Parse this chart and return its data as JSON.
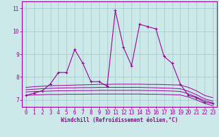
{
  "xlabel": "Windchill (Refroidissement éolien,°C)",
  "x": [
    0,
    1,
    2,
    3,
    4,
    5,
    6,
    7,
    8,
    9,
    10,
    11,
    12,
    13,
    14,
    15,
    16,
    17,
    18,
    19,
    20,
    21,
    22,
    23
  ],
  "main_line": [
    7.2,
    7.3,
    7.4,
    7.7,
    8.2,
    8.2,
    9.2,
    8.6,
    7.8,
    7.8,
    7.6,
    10.9,
    9.3,
    8.5,
    10.3,
    10.2,
    10.1,
    8.9,
    8.6,
    7.7,
    7.2,
    7.1,
    6.9,
    6.85
  ],
  "flat_lines": [
    [
      7.55,
      7.58,
      7.6,
      7.62,
      7.63,
      7.64,
      7.65,
      7.66,
      7.67,
      7.68,
      7.68,
      7.69,
      7.69,
      7.69,
      7.69,
      7.68,
      7.68,
      7.67,
      7.66,
      7.65,
      7.55,
      7.4,
      7.2,
      7.1
    ],
    [
      7.45,
      7.47,
      7.49,
      7.51,
      7.52,
      7.53,
      7.53,
      7.54,
      7.54,
      7.55,
      7.55,
      7.55,
      7.55,
      7.55,
      7.55,
      7.54,
      7.53,
      7.52,
      7.51,
      7.49,
      7.38,
      7.23,
      7.05,
      6.95
    ],
    [
      7.35,
      7.37,
      7.38,
      7.39,
      7.4,
      7.4,
      7.41,
      7.41,
      7.41,
      7.42,
      7.42,
      7.42,
      7.42,
      7.42,
      7.42,
      7.41,
      7.41,
      7.4,
      7.39,
      7.37,
      7.27,
      7.13,
      6.97,
      6.87
    ],
    [
      7.2,
      7.22,
      7.23,
      7.24,
      7.24,
      7.25,
      7.25,
      7.25,
      7.26,
      7.26,
      7.26,
      7.26,
      7.26,
      7.26,
      7.26,
      7.25,
      7.25,
      7.24,
      7.23,
      7.22,
      7.13,
      7.0,
      6.85,
      6.75
    ]
  ],
  "line_color": "#990099",
  "bg_color": "#cce8e8",
  "grid_color": "#aacccc",
  "ylim": [
    6.7,
    11.3
  ],
  "xlim": [
    -0.5,
    23.5
  ],
  "yticks": [
    7,
    8,
    9,
    10,
    11
  ],
  "xticks": [
    0,
    1,
    2,
    3,
    4,
    5,
    6,
    7,
    8,
    9,
    10,
    11,
    12,
    13,
    14,
    15,
    16,
    17,
    18,
    19,
    20,
    21,
    22,
    23
  ]
}
